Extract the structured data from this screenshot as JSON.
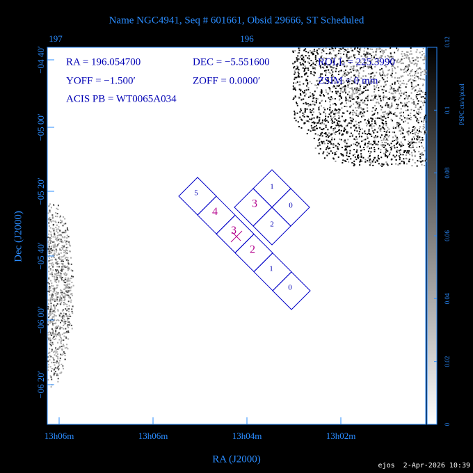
{
  "title": "Name NGC4941, Seq # 601661, Obsid 29666, ST Scheduled",
  "top_axis": {
    "ticks": [
      "197",
      "196"
    ]
  },
  "left_axis": {
    "label": "Dec (J2000)",
    "ticks": [
      "−04 40′",
      "−05 00′",
      "−05 20′",
      "−05 40′",
      "−06 00′",
      "−06 20′"
    ]
  },
  "bottom_axis": {
    "label": "RA (J2000)",
    "ticks": [
      "13h06m",
      "13h06m",
      "13h04m",
      "13h02m"
    ]
  },
  "info": [
    "RA = 196.054700",
    "DEC = −5.551600",
    "ROLL = 225.3990",
    "YOFF = −1.500′",
    "ZOFF = 0.0000′",
    "ZSIM = 0 mm",
    "ACIS PB = WT0065A034"
  ],
  "acis_i": [
    "1",
    "0",
    "2",
    "3"
  ],
  "acis_s": [
    "5",
    "4",
    "3",
    "2",
    "1",
    "0"
  ],
  "colorbar": {
    "label": "PSPC cts/s/pixel",
    "ticks": [
      0,
      0.02,
      0.04,
      0.06,
      0.08,
      0.1,
      0.12
    ]
  },
  "footer": "ejos  2-Apr-2026 10:39"
}
